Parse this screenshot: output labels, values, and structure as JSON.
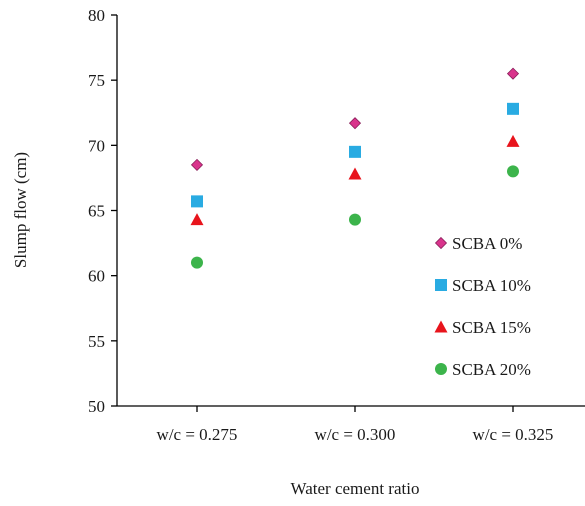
{
  "chart_data": {
    "type": "scatter",
    "title": "",
    "xlabel": "Water cement ratio",
    "ylabel": "Slump flow (cm)",
    "categories": [
      "w/c = 0.275",
      "w/c = 0.300",
      "w/c = 0.325"
    ],
    "ylim": [
      50,
      80
    ],
    "yticks": [
      50,
      55,
      60,
      65,
      70,
      75,
      80
    ],
    "grid": false,
    "legend_position": "right",
    "series": [
      {
        "name": "SCBA 0%",
        "marker": "diamond",
        "color": "#d9348c",
        "values": [
          68.5,
          71.7,
          75.5
        ]
      },
      {
        "name": "SCBA 10%",
        "marker": "square",
        "color": "#29abe2",
        "values": [
          65.7,
          69.5,
          72.8
        ]
      },
      {
        "name": "SCBA 15%",
        "marker": "triangle",
        "color": "#e8141c",
        "values": [
          64.3,
          67.8,
          70.3
        ]
      },
      {
        "name": "SCBA 20%",
        "marker": "circle",
        "color": "#3cb44b",
        "values": [
          61.0,
          64.3,
          68.0
        ]
      }
    ]
  }
}
